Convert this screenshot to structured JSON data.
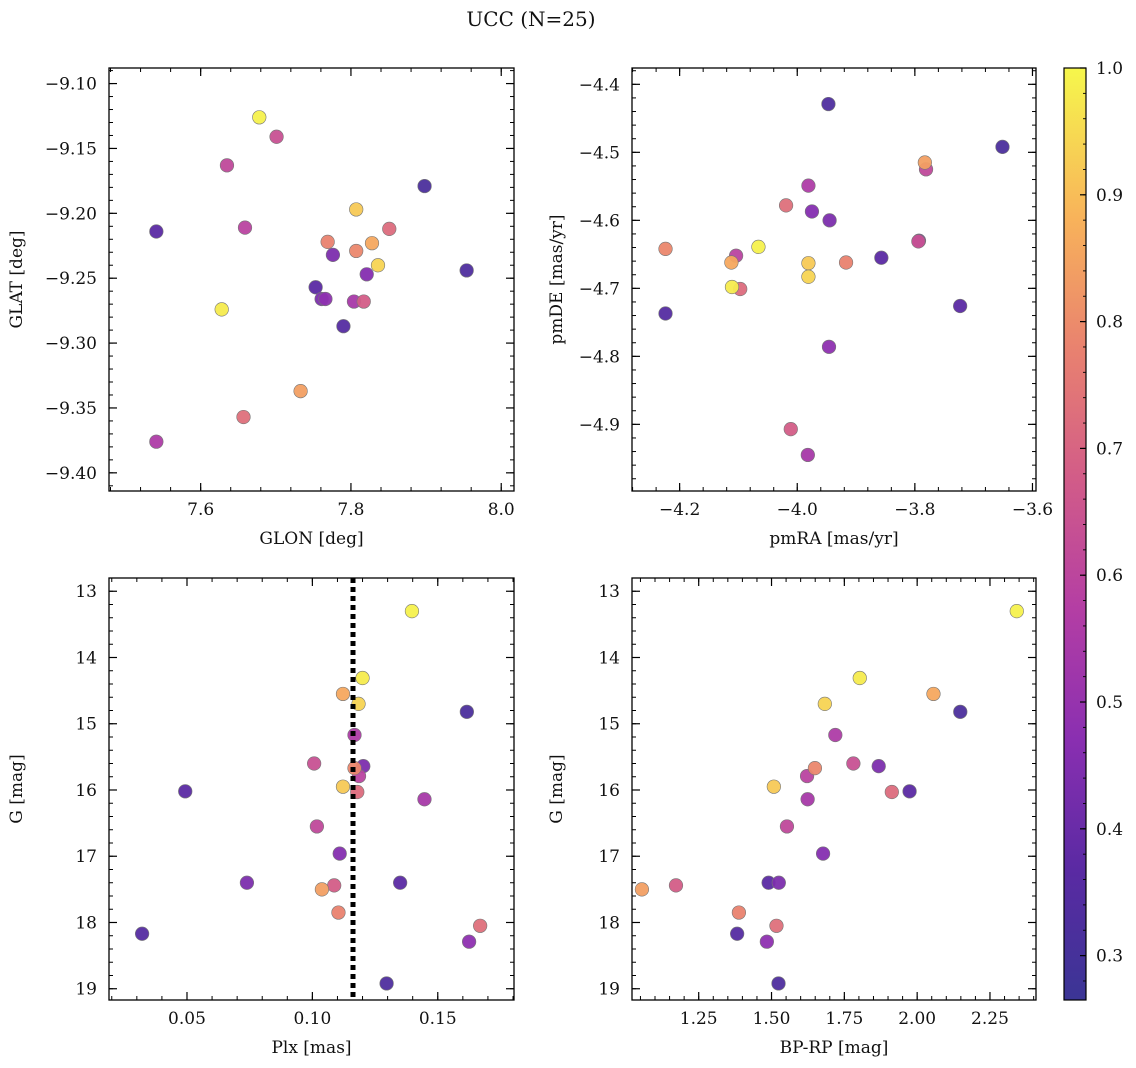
{
  "chart_data": {
    "title": "UCC (N=25)",
    "colorbar": {
      "range": [
        0.265,
        1.0
      ],
      "ticks": [
        0.3,
        0.4,
        0.5,
        0.6,
        0.7,
        0.8,
        0.9,
        1.0
      ],
      "tick_labels": [
        "0.3",
        "0.4",
        "0.5",
        "0.6",
        "0.7",
        "0.8",
        "0.9",
        "1.0"
      ],
      "colormap": "plasma"
    },
    "stars": {
      "probability": [
        0.32,
        0.64,
        0.56,
        0.61,
        0.72,
        0.86,
        0.79,
        0.59,
        0.44,
        0.94,
        0.92,
        0.46,
        0.37,
        0.54,
        0.68,
        0.78,
        0.37,
        0.84,
        0.44,
        0.35,
        0.73,
        0.98,
        0.99,
        0.48,
        0.33
      ],
      "glon": [
        7.898,
        7.701,
        7.541,
        7.635,
        7.851,
        7.828,
        7.807,
        7.659,
        7.776,
        7.836,
        7.807,
        7.821,
        7.541,
        7.804,
        7.817,
        7.769,
        7.753,
        7.733,
        7.761,
        7.79,
        7.657,
        7.628,
        7.678,
        7.766,
        7.954
      ],
      "glat": [
        -9.179,
        -9.141,
        -9.376,
        -9.163,
        -9.212,
        -9.223,
        -9.229,
        -9.211,
        -9.232,
        -9.24,
        -9.197,
        -9.247,
        -9.214,
        -9.268,
        -9.268,
        -9.222,
        -9.257,
        -9.337,
        -9.266,
        -9.287,
        -9.357,
        -9.274,
        -9.126,
        -9.266,
        -9.244
      ],
      "pmra": [
        -3.651,
        -3.794,
        -3.981,
        -3.781,
        -4.097,
        -4.112,
        -4.224,
        -4.104,
        -3.793,
        -3.981,
        -3.981,
        -3.975,
        -3.857,
        -3.982,
        -4.011,
        -3.917,
        -3.723,
        -3.783,
        -3.945,
        -4.224,
        -4.019,
        -4.111,
        -4.066,
        -3.946,
        -3.947
      ],
      "pmde": [
        -4.492,
        -4.631,
        -4.549,
        -4.525,
        -4.701,
        -4.662,
        -4.642,
        -4.652,
        -4.63,
        -4.683,
        -4.663,
        -4.587,
        -4.655,
        -4.945,
        -4.907,
        -4.662,
        -4.726,
        -4.515,
        -4.6,
        -4.737,
        -4.578,
        -4.698,
        -4.639,
        -4.786,
        -4.429
      ],
      "plx": [
        0.1616,
        0.1007,
        0.1168,
        0.1018,
        0.1179,
        0.1122,
        0.1168,
        0.1186,
        0.1203,
        0.1184,
        0.1122,
        0.1109,
        0.0493,
        0.1447,
        0.1087,
        0.1104,
        0.135,
        0.1038,
        0.0739,
        0.0321,
        0.1669,
        0.12,
        0.1397,
        0.1625,
        0.1296
      ],
      "bp_rp": [
        2.148,
        1.781,
        1.719,
        1.553,
        1.913,
        2.056,
        1.649,
        1.622,
        1.868,
        1.683,
        1.508,
        1.677,
        1.974,
        1.624,
        1.172,
        1.388,
        1.49,
        1.055,
        1.525,
        1.382,
        1.517,
        1.803,
        2.342,
        1.484,
        1.524
      ],
      "g": [
        14.82,
        15.6,
        15.17,
        16.55,
        16.03,
        14.55,
        15.67,
        15.79,
        15.64,
        14.7,
        15.95,
        16.96,
        16.02,
        16.14,
        17.44,
        17.85,
        17.4,
        17.5,
        17.4,
        18.17,
        18.05,
        14.31,
        13.3,
        18.29,
        18.92
      ]
    },
    "panels": [
      {
        "id": "glon-glat",
        "x": "glon",
        "y": "glat",
        "xlabel": "GLON [deg]",
        "ylabel": "GLAT [deg]",
        "xlim": [
          7.478,
          8.017
        ],
        "ylim": [
          -9.414,
          -9.088
        ],
        "invert_y": false,
        "xticks": [
          7.6,
          7.8,
          8.0
        ],
        "xtick_labels": [
          "7.6",
          "7.8",
          "8.0"
        ],
        "yticks": [
          -9.1,
          -9.15,
          -9.2,
          -9.25,
          -9.3,
          -9.35,
          -9.4
        ],
        "ytick_labels": [
          "−9.10",
          "−9.15",
          "−9.20",
          "−9.25",
          "−9.30",
          "−9.35",
          "−9.40"
        ]
      },
      {
        "id": "pmra-pmde",
        "x": "pmra",
        "y": "pmde",
        "xlabel": "pmRA [mas/yr]",
        "ylabel": "pmDE [mas/yr]",
        "xlim": [
          -4.281,
          -3.594
        ],
        "ylim": [
          -4.998,
          -4.376
        ],
        "invert_y": false,
        "xticks": [
          -4.2,
          -4.0,
          -3.8,
          -3.6
        ],
        "xtick_labels": [
          "−4.2",
          "−4.0",
          "−3.8",
          "−3.6"
        ],
        "yticks": [
          -4.4,
          -4.5,
          -4.6,
          -4.7,
          -4.8,
          -4.9
        ],
        "ytick_labels": [
          "−4.4",
          "−4.5",
          "−4.6",
          "−4.7",
          "−4.8",
          "−4.9"
        ]
      },
      {
        "id": "plx-g",
        "x": "plx",
        "y": "g",
        "xlabel": "Plx [mas]",
        "ylabel": "G [mag]",
        "xlim": [
          0.0189,
          0.1804
        ],
        "ylim": [
          12.8,
          19.17
        ],
        "invert_y": true,
        "xticks": [
          0.05,
          0.1,
          0.15
        ],
        "xtick_labels": [
          "0.05",
          "0.10",
          "0.15"
        ],
        "yticks": [
          13,
          14,
          15,
          16,
          17,
          18,
          19
        ],
        "ytick_labels": [
          "13",
          "14",
          "15",
          "16",
          "17",
          "18",
          "19"
        ],
        "vline": {
          "x": 0.1162,
          "style": "dotted"
        }
      },
      {
        "id": "bprp-g",
        "x": "bp_rp",
        "y": "g",
        "xlabel": "BP-RP [mag]",
        "ylabel": "G [mag]",
        "xlim": [
          1.021,
          2.408
        ],
        "ylim": [
          12.8,
          19.17
        ],
        "invert_y": true,
        "xticks": [
          1.25,
          1.5,
          1.75,
          2.0,
          2.25
        ],
        "xtick_labels": [
          "1.25",
          "1.50",
          "1.75",
          "2.00",
          "2.25"
        ],
        "yticks": [
          13,
          14,
          15,
          16,
          17,
          18,
          19
        ],
        "ytick_labels": [
          "13",
          "14",
          "15",
          "16",
          "17",
          "18",
          "19"
        ]
      }
    ]
  }
}
